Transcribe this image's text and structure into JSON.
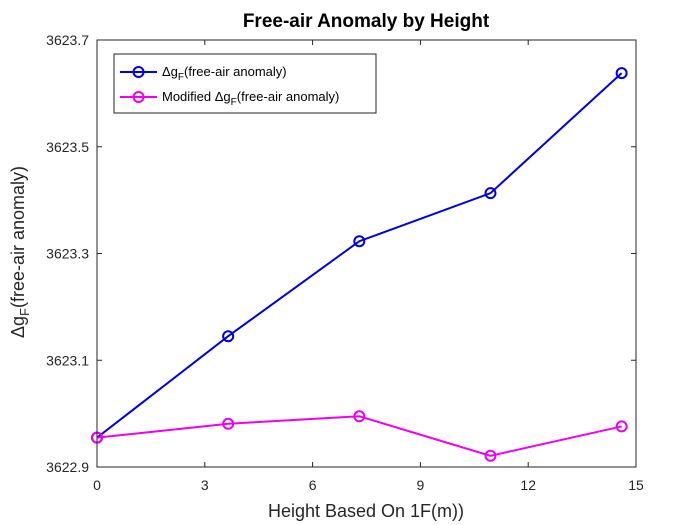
{
  "chart_data": {
    "type": "line",
    "title": "Free-air Anomaly by Height",
    "xlabel": "Height Based On 1F(m))",
    "ylabel": {
      "prefix": "Δg",
      "sub": "F",
      "suffix": "(free-air anomaly)"
    },
    "xlim": [
      0,
      15
    ],
    "ylim": [
      3622.9,
      3623.7
    ],
    "xticks": [
      0,
      3,
      6,
      9,
      12,
      15
    ],
    "xtick_labels": [
      "0",
      "3",
      "6",
      "9",
      "12",
      "15"
    ],
    "yticks": [
      3622.9,
      3623.1,
      3623.3,
      3623.5,
      3623.7
    ],
    "ytick_labels": [
      "3622.9",
      "3623.1",
      "3623.3",
      "3623.5",
      "3623.7"
    ],
    "grid": false,
    "legend_position": "top-left",
    "series": [
      {
        "legend": {
          "prefix": "Δg",
          "sub": "F",
          "suffix": "(free-air anomaly)"
        },
        "color": "#0000dd",
        "marker": "circle",
        "x": [
          0,
          3.65,
          7.3,
          10.95,
          14.6
        ],
        "y": [
          3622.955,
          3623.145,
          3623.323,
          3623.413,
          3623.638
        ]
      },
      {
        "legend": {
          "prefix": "Modified Δg",
          "sub": "F",
          "suffix": "(free-air anomaly)"
        },
        "color": "#ee00ee",
        "marker": "circle",
        "x": [
          0,
          3.65,
          7.3,
          10.95,
          14.6
        ],
        "y": [
          3622.955,
          3622.981,
          3622.995,
          3622.921,
          3622.976
        ]
      }
    ]
  }
}
